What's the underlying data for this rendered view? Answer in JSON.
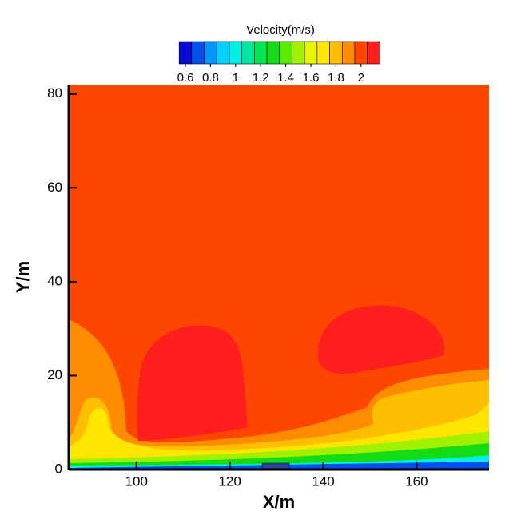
{
  "chart_data": {
    "type": "contour",
    "colorbar_title": "Velocity(m/s)",
    "levels": [
      0.6,
      0.7,
      0.8,
      0.9,
      1.0,
      1.1,
      1.2,
      1.3,
      1.4,
      1.5,
      1.6,
      1.7,
      1.8,
      1.9,
      2.0,
      2.1
    ],
    "colors": [
      "#0a0ad2",
      "#0050f0",
      "#0096ff",
      "#00d2ff",
      "#00f0e6",
      "#00e6a0",
      "#00e650",
      "#14dc14",
      "#5aeb00",
      "#a0f000",
      "#e6f500",
      "#ffe600",
      "#ffbe00",
      "#ff8c00",
      "#ff4600",
      "#ff1e1e"
    ],
    "colorbar_ticks": [
      0.6,
      0.8,
      1,
      1.2,
      1.4,
      1.6,
      1.8,
      2
    ],
    "x_label": "X/m",
    "y_label": "Y/m",
    "xlim": [
      85.5,
      175.5
    ],
    "ylim": [
      0,
      82
    ],
    "xticks": [
      100,
      120,
      140,
      160
    ],
    "yticks": [
      0,
      20,
      40,
      60,
      80
    ]
  }
}
